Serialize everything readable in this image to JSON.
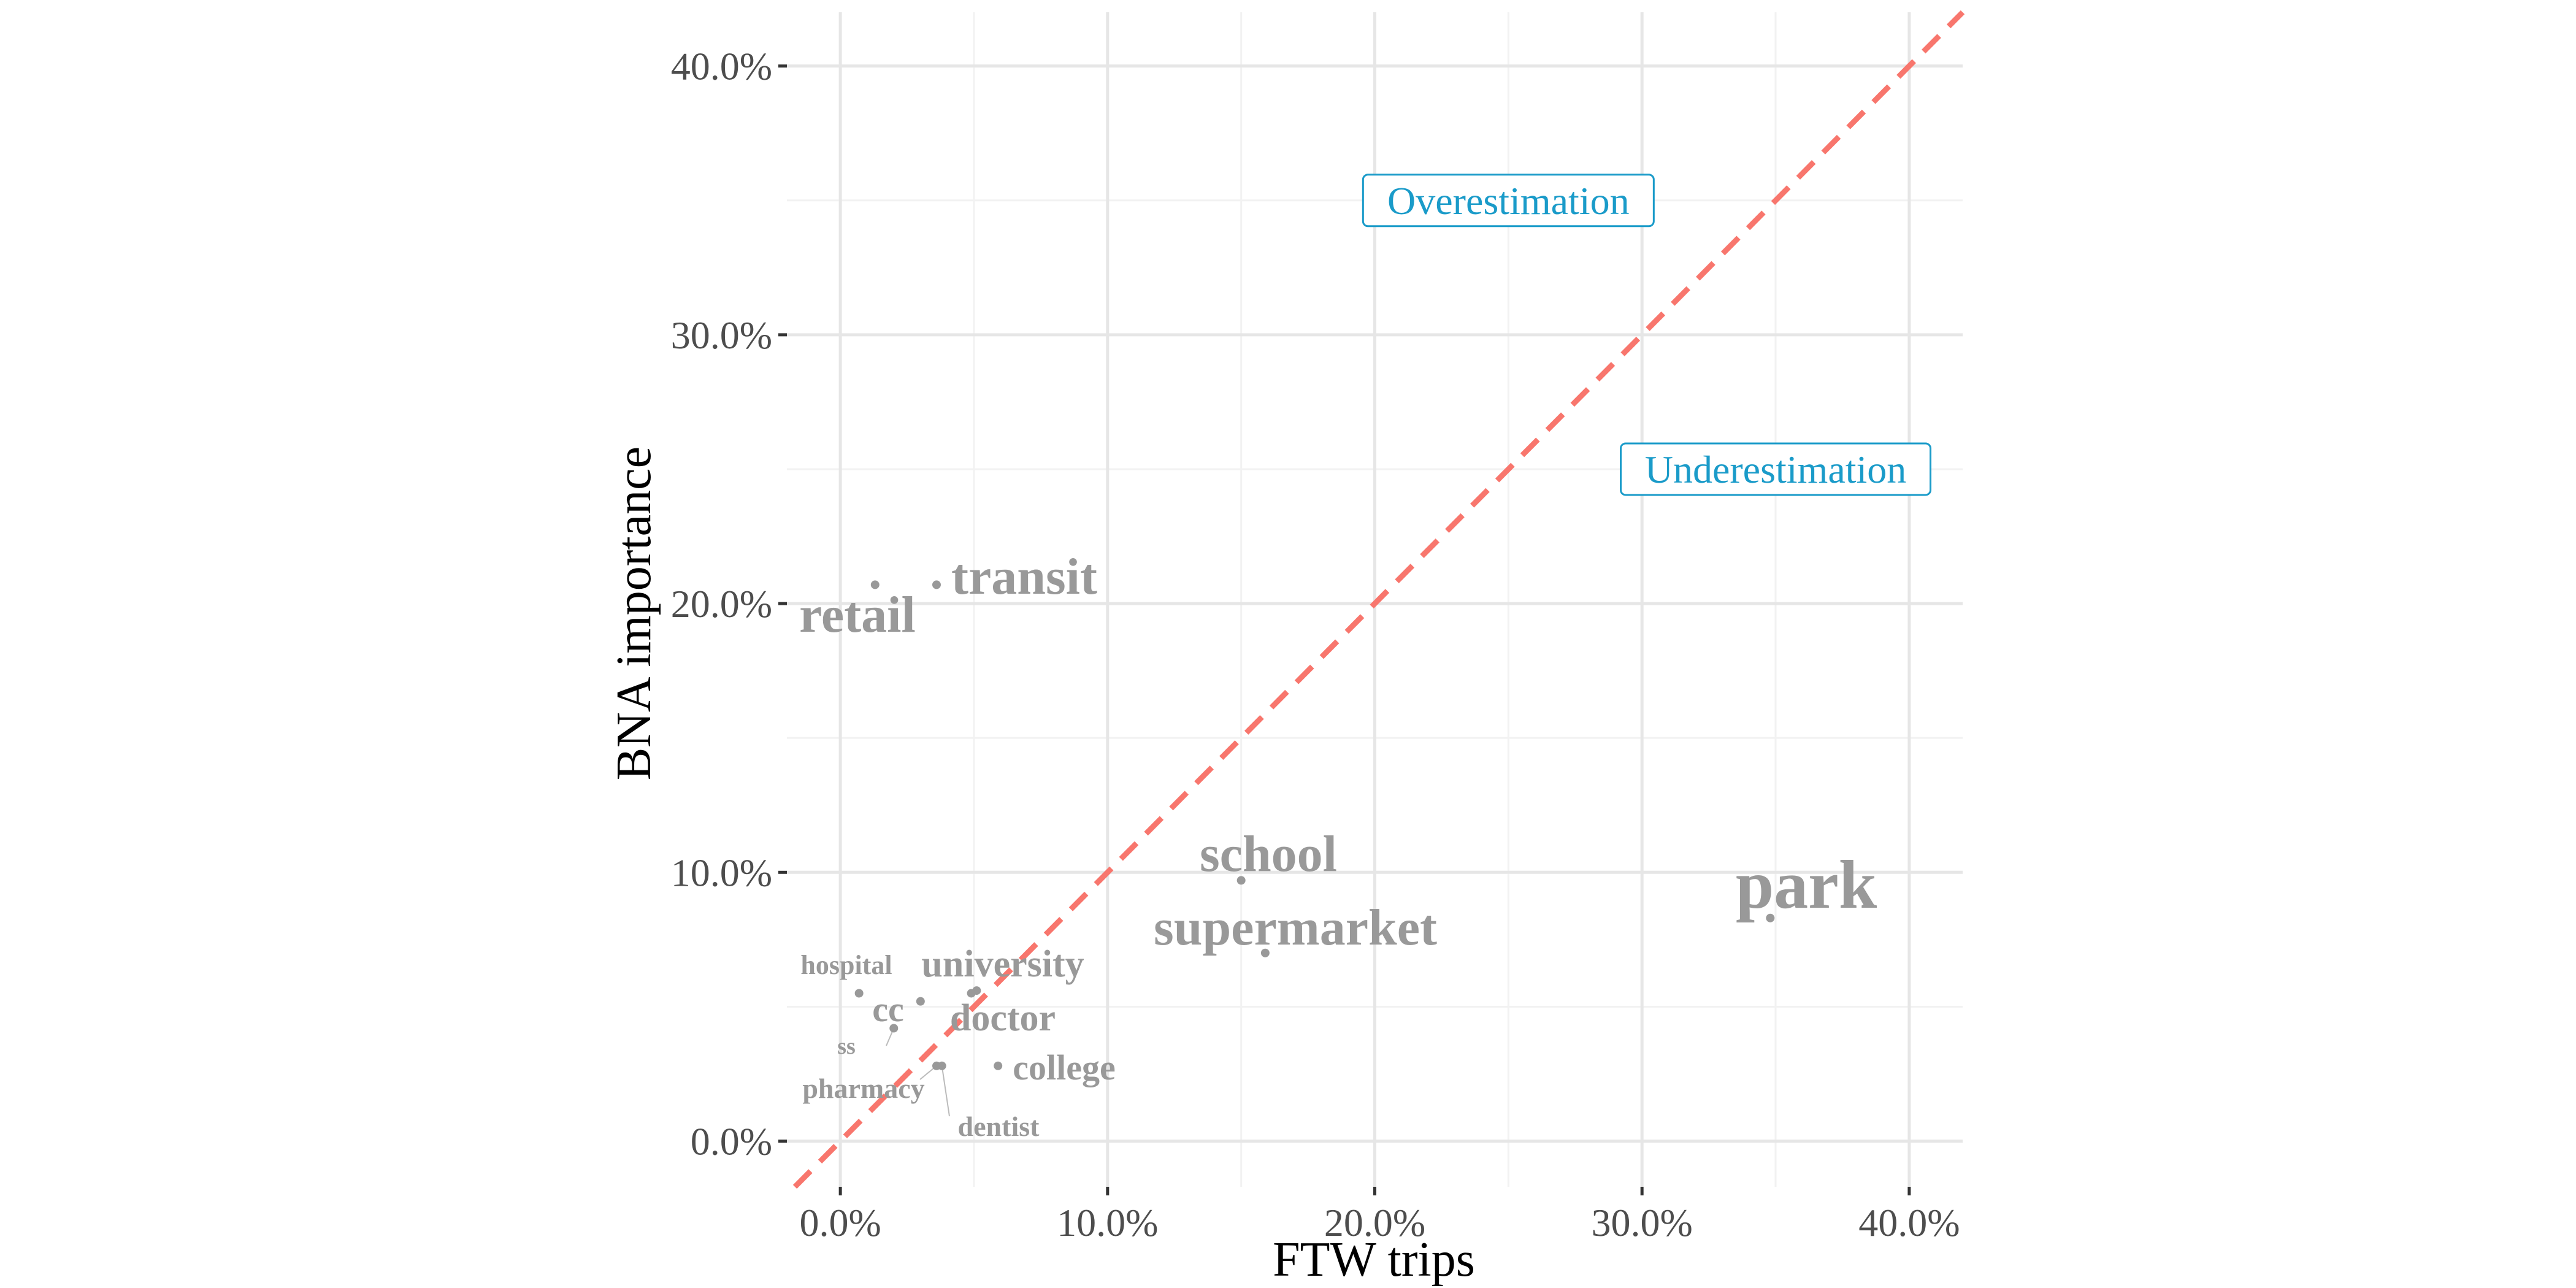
{
  "chart_data": {
    "type": "scatter",
    "title": "",
    "xlabel": "FTW trips",
    "ylabel": "BNA importance",
    "xlim": [
      -0.02,
      0.42
    ],
    "ylim": [
      -0.017,
      0.42
    ],
    "x_ticks": [
      0.0,
      0.1,
      0.2,
      0.3,
      0.4
    ],
    "x_tick_labels": [
      "0.0%",
      "10.0%",
      "20.0%",
      "30.0%",
      "40.0%"
    ],
    "y_ticks": [
      0.0,
      0.1,
      0.2,
      0.3,
      0.4
    ],
    "y_tick_labels": [
      "0.0%",
      "10.0%",
      "20.0%",
      "30.0%",
      "40.0%"
    ],
    "grid": true,
    "reference_line": {
      "slope": 1,
      "intercept": 0,
      "style": "dashed",
      "color": "#f8766d"
    },
    "point_color": "#999999",
    "label_color": "#999999",
    "annotation_color": "#1a9bc9",
    "points": [
      {
        "label": "park",
        "x": 0.348,
        "y": 0.083
      },
      {
        "label": "school",
        "x": 0.15,
        "y": 0.097
      },
      {
        "label": "supermarket",
        "x": 0.159,
        "y": 0.07
      },
      {
        "label": "transit",
        "x": 0.036,
        "y": 0.207
      },
      {
        "label": "retail",
        "x": 0.013,
        "y": 0.207
      },
      {
        "label": "university",
        "x": 0.051,
        "y": 0.056
      },
      {
        "label": "doctor",
        "x": 0.049,
        "y": 0.055
      },
      {
        "label": "college",
        "x": 0.059,
        "y": 0.028
      },
      {
        "label": "hospital",
        "x": 0.007,
        "y": 0.055
      },
      {
        "label": "cc",
        "x": 0.03,
        "y": 0.052
      },
      {
        "label": "ss",
        "x": 0.02,
        "y": 0.042
      },
      {
        "label": "pharmacy",
        "x": 0.036,
        "y": 0.028
      },
      {
        "label": "dentist",
        "x": 0.038,
        "y": 0.028
      }
    ],
    "annotations": [
      {
        "text": "Overestimation",
        "x": 0.25,
        "y": 0.35
      },
      {
        "text": "Underestimation",
        "x": 0.35,
        "y": 0.25
      }
    ]
  }
}
